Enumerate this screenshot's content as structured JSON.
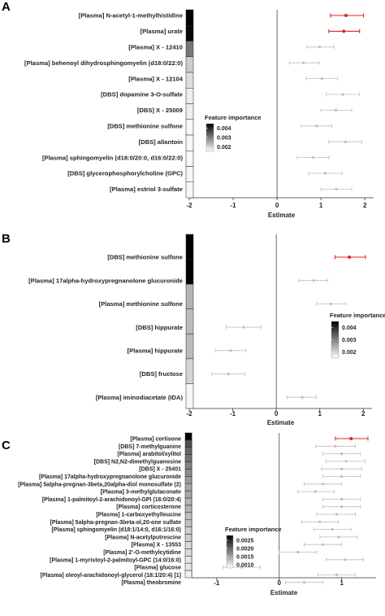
{
  "chart_data": [
    {
      "type": "scatter",
      "panel_label": "A",
      "xlabel": "Estimate",
      "xlim": [
        -2,
        2.2
      ],
      "xticks": [
        "-2",
        "-1",
        "0",
        "1",
        "2"
      ],
      "xtick_values": [
        -2,
        -1,
        0,
        1,
        2
      ],
      "grid": false,
      "highlight_color": "#e0252a",
      "legend": {
        "title": "Feature importance",
        "labels": [
          "0.004",
          "0.003",
          "0.002"
        ],
        "label_values": [
          0.004,
          0.003,
          0.002
        ],
        "min": 0.0015,
        "max": 0.0045,
        "placement": "center"
      },
      "items": [
        {
          "label": "[Plasma] N-acetyl-1-methylhistidine",
          "estimate": 1.57,
          "lo": 1.22,
          "hi": 1.97,
          "importance": 0.0045,
          "highlight": true
        },
        {
          "label": "[Plasma] urate",
          "estimate": 1.52,
          "lo": 1.18,
          "hi": 1.88,
          "importance": 0.0044,
          "highlight": true
        },
        {
          "label": "[Plasma] X - 12410",
          "estimate": 0.97,
          "lo": 0.68,
          "hi": 1.3,
          "importance": 0.0031,
          "highlight": false
        },
        {
          "label": "[Plasma] behenoyl dihydrosphingomyelin (d18:0/22:0)",
          "estimate": 0.6,
          "lo": 0.28,
          "hi": 0.96,
          "importance": 0.0021,
          "highlight": false
        },
        {
          "label": "[Plasma] X - 12104",
          "estimate": 1.02,
          "lo": 0.66,
          "hi": 1.38,
          "importance": 0.0019,
          "highlight": false
        },
        {
          "label": "[DBS] dopamine 3-O-sulfate",
          "estimate": 1.5,
          "lo": 1.12,
          "hi": 1.88,
          "importance": 0.0017,
          "highlight": false
        },
        {
          "label": "[DBS] X - 25009",
          "estimate": 1.34,
          "lo": 1.0,
          "hi": 1.7,
          "importance": 0.0017,
          "highlight": false
        },
        {
          "label": "[DBS] methionine sulfone",
          "estimate": 0.9,
          "lo": 0.55,
          "hi": 1.25,
          "importance": 0.0016,
          "highlight": false
        },
        {
          "label": "[DBS] allantoin",
          "estimate": 1.56,
          "lo": 1.18,
          "hi": 1.93,
          "importance": 0.0016,
          "highlight": false
        },
        {
          "label": "[Plasma] sphingomyelin (d18:0/20:0, d16:0/22:0)",
          "estimate": 0.82,
          "lo": 0.46,
          "hi": 1.18,
          "importance": 0.0016,
          "highlight": false
        },
        {
          "label": "[DBS] glycerophosphorylcholine (GPC)",
          "estimate": 1.1,
          "lo": 0.72,
          "hi": 1.48,
          "importance": 0.0016,
          "highlight": false
        },
        {
          "label": "[Plasma] estriol 3-sulfate",
          "estimate": 1.35,
          "lo": 1.0,
          "hi": 1.7,
          "importance": 0.0016,
          "highlight": false
        }
      ]
    },
    {
      "type": "scatter",
      "panel_label": "B",
      "xlabel": "Estimate",
      "xlim": [
        -2,
        2.2
      ],
      "xticks": [
        "-2",
        "-1",
        "0",
        "1",
        "2"
      ],
      "xtick_values": [
        -2,
        -1,
        0,
        1,
        2
      ],
      "grid": false,
      "highlight_color": "#e0252a",
      "legend": {
        "title": "Feature importance",
        "labels": [
          "0.004",
          "0.003",
          "0.002"
        ],
        "label_values": [
          0.004,
          0.003,
          0.002
        ],
        "min": 0.0015,
        "max": 0.0045,
        "placement": "right"
      },
      "items": [
        {
          "label": "[DBS] methionine sulfone",
          "estimate": 1.68,
          "lo": 1.35,
          "hi": 2.05,
          "importance": 0.0046,
          "highlight": true
        },
        {
          "label": "[Plasma] 17alpha-hydroxypregnanolone glucuronide",
          "estimate": 0.86,
          "lo": 0.52,
          "hi": 1.18,
          "importance": 0.0045,
          "highlight": false
        },
        {
          "label": "[Plasma] methionine sulfone",
          "estimate": 1.25,
          "lo": 0.92,
          "hi": 1.6,
          "importance": 0.0024,
          "highlight": false
        },
        {
          "label": "[DBS] hippurate",
          "estimate": -0.75,
          "lo": -1.15,
          "hi": -0.35,
          "importance": 0.0023,
          "highlight": false
        },
        {
          "label": "[Plasma] hippurate",
          "estimate": -1.05,
          "lo": -1.4,
          "hi": -0.7,
          "importance": 0.0023,
          "highlight": false
        },
        {
          "label": "[DBS] fructose",
          "estimate": -1.1,
          "lo": -1.48,
          "hi": -0.72,
          "importance": 0.002,
          "highlight": false
        },
        {
          "label": "[Plasma] iminodiacetate (IDA)",
          "estimate": 0.6,
          "lo": 0.25,
          "hi": 0.92,
          "importance": 0.0016,
          "highlight": false
        }
      ]
    },
    {
      "type": "scatter",
      "panel_label": "C",
      "xlabel": "Estimate",
      "xlim": [
        -1.4,
        1.55
      ],
      "xticks": [
        "-1",
        "0",
        "1"
      ],
      "xtick_values": [
        -1,
        0,
        1
      ],
      "grid": false,
      "highlight_color": "#e0252a",
      "legend": {
        "title": "Feature importance",
        "labels": [
          "0.0025",
          "0.0020",
          "0.0015",
          "0.0010"
        ],
        "label_values": [
          0.0025,
          0.002,
          0.0015,
          0.001
        ],
        "min": 0.0008,
        "max": 0.0028,
        "placement": "center"
      },
      "items": [
        {
          "label": "[Plasma] cortisone",
          "estimate": 1.15,
          "lo": 0.9,
          "hi": 1.42,
          "importance": 0.0028,
          "highlight": true
        },
        {
          "label": "[DBS] 7-methylguanine",
          "estimate": 0.9,
          "lo": 0.58,
          "hi": 1.22,
          "importance": 0.0022,
          "highlight": false
        },
        {
          "label": "[Plasma] arabitol/xylitol",
          "estimate": 1.0,
          "lo": 0.7,
          "hi": 1.3,
          "importance": 0.002,
          "highlight": false
        },
        {
          "label": "[DBS] N2,N2-dimethylguanosine",
          "estimate": 1.07,
          "lo": 0.75,
          "hi": 1.38,
          "importance": 0.0019,
          "highlight": false
        },
        {
          "label": "[DBS] X - 25401",
          "estimate": 1.0,
          "lo": 0.68,
          "hi": 1.32,
          "importance": 0.0018,
          "highlight": false
        },
        {
          "label": "[Plasma] 17alpha-hydroxypregnanolone glucuronide",
          "estimate": 1.0,
          "lo": 0.7,
          "hi": 1.3,
          "importance": 0.0017,
          "highlight": false
        },
        {
          "label": "[Plasma] 5alpha-pregnan-3beta,20alpha-diol monosulfate (2)",
          "estimate": 0.7,
          "lo": 0.4,
          "hi": 1.0,
          "importance": 0.0016,
          "highlight": false
        },
        {
          "label": "[Plasma] 3-methylglutaconate",
          "estimate": 0.58,
          "lo": 0.3,
          "hi": 0.88,
          "importance": 0.0015,
          "highlight": false
        },
        {
          "label": "[Plasma] 1-palmitoyl-2-arachidonoyl-GPI (16:0/20:4)",
          "estimate": 1.0,
          "lo": 0.7,
          "hi": 1.3,
          "importance": 0.0015,
          "highlight": false
        },
        {
          "label": "[Plasma] corticosterone",
          "estimate": 1.0,
          "lo": 0.7,
          "hi": 1.3,
          "importance": 0.0014,
          "highlight": false
        },
        {
          "label": "[Plasma] 1-carboxyethylleucine",
          "estimate": 0.92,
          "lo": 0.6,
          "hi": 1.22,
          "importance": 0.0014,
          "highlight": false
        },
        {
          "label": "[Plasma] 5alpha-pregnan-3beta-ol,20-one sulfate",
          "estimate": 0.65,
          "lo": 0.36,
          "hi": 0.95,
          "importance": 0.0013,
          "highlight": false
        },
        {
          "label": "[Plasma] sphingomyelin (d18:1/14:0, d16:1/16:0)",
          "estimate": 0.85,
          "lo": 0.55,
          "hi": 1.15,
          "importance": 0.0013,
          "highlight": false
        },
        {
          "label": "[Plasma] N-acetylputrescine",
          "estimate": 0.95,
          "lo": 0.65,
          "hi": 1.25,
          "importance": 0.0012,
          "highlight": false
        },
        {
          "label": "[Plasma] X - 13553",
          "estimate": 0.7,
          "lo": 0.4,
          "hi": 1.0,
          "importance": 0.0012,
          "highlight": false
        },
        {
          "label": "[Plasma] 2'-O-methylcytidine",
          "estimate": 0.3,
          "lo": 0.0,
          "hi": 0.6,
          "importance": 0.0011,
          "highlight": false
        },
        {
          "label": "[Plasma] 1-myristoyl-2-palmitoyl-GPC (14:0/16:0)",
          "estimate": 1.05,
          "lo": 0.75,
          "hi": 1.35,
          "importance": 0.0011,
          "highlight": false
        },
        {
          "label": "[Plasma] glucose",
          "estimate": -0.6,
          "lo": -0.9,
          "hi": -0.3,
          "importance": 0.001,
          "highlight": false
        },
        {
          "label": "[Plasma] oleoyl-arachidonoyl-glycerol (18:1/20:4) [1]",
          "estimate": 0.92,
          "lo": 0.62,
          "hi": 1.22,
          "importance": 0.001,
          "highlight": false
        },
        {
          "label": "[Plasma] theobromine",
          "estimate": 0.4,
          "lo": 0.1,
          "hi": 0.7,
          "importance": 0.0009,
          "highlight": false
        }
      ]
    }
  ]
}
